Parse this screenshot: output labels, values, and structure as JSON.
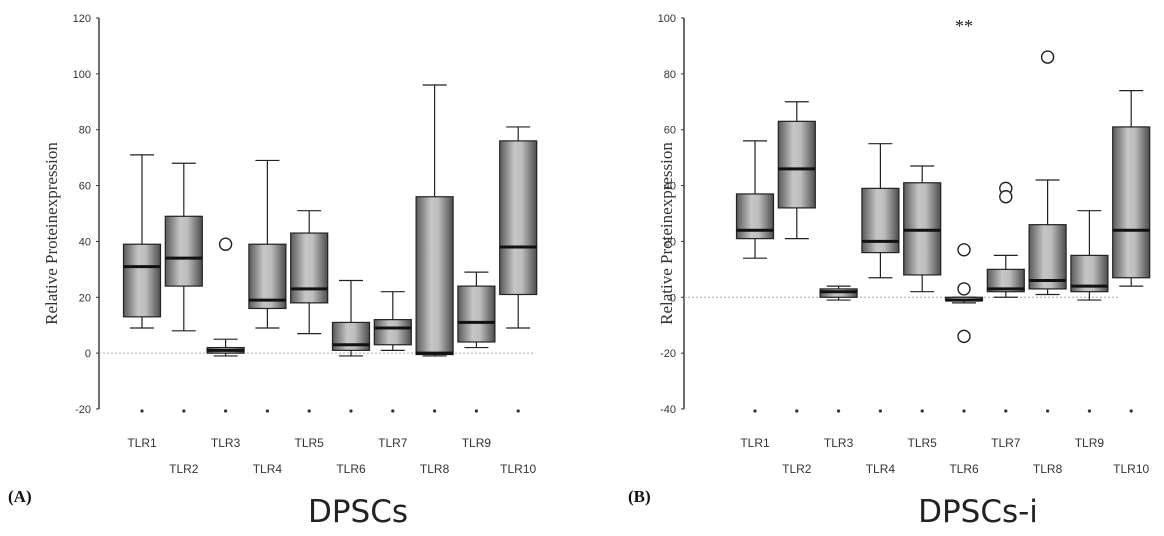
{
  "chart_data": [
    {
      "type": "box",
      "panel_label": "(A)",
      "caption": "DPSCs",
      "ylabel": "Relative Proteinexpression",
      "ylim": [
        -20,
        120
      ],
      "yticks": [
        "-20",
        "0",
        "20",
        "40",
        "60",
        "80",
        "100",
        "120"
      ],
      "categories": [
        "TLR1",
        "TLR2",
        "TLR3",
        "TLR4",
        "TLR5",
        "TLR6",
        "TLR7",
        "TLR8",
        "TLR9",
        "TLR10"
      ],
      "boxes": [
        {
          "min": 9,
          "q1": 13,
          "median": 31,
          "q3": 39,
          "max": 71,
          "outliers": []
        },
        {
          "min": 8,
          "q1": 24,
          "median": 34,
          "q3": 49,
          "max": 68,
          "outliers": []
        },
        {
          "min": -1,
          "q1": 0,
          "median": 1,
          "q3": 2,
          "max": 5,
          "outliers": [
            39
          ]
        },
        {
          "min": 9,
          "q1": 16,
          "median": 19,
          "q3": 39,
          "max": 69,
          "outliers": []
        },
        {
          "min": 7,
          "q1": 18,
          "median": 23,
          "q3": 43,
          "max": 51,
          "outliers": []
        },
        {
          "min": -1,
          "q1": 1,
          "median": 3,
          "q3": 11,
          "max": 26,
          "outliers": []
        },
        {
          "min": 1,
          "q1": 3,
          "median": 9,
          "q3": 12,
          "max": 22,
          "outliers": []
        },
        {
          "min": -1,
          "q1": -0.5,
          "median": 0,
          "q3": 56,
          "max": 96,
          "outliers": []
        },
        {
          "min": 2,
          "q1": 4,
          "median": 11,
          "q3": 24,
          "max": 29,
          "outliers": []
        },
        {
          "min": 9,
          "q1": 21,
          "median": 38,
          "q3": 76,
          "max": 81,
          "outliers": []
        }
      ],
      "annotations": []
    },
    {
      "type": "box",
      "panel_label": "(B)",
      "caption": "DPSCs-i",
      "ylabel": "Relative Proteinexpression",
      "ylim": [
        -40,
        100
      ],
      "yticks": [
        "-40",
        "-20",
        "0",
        "20",
        "40",
        "60",
        "80",
        "100"
      ],
      "categories": [
        "TLR1",
        "TLR2",
        "TLR3",
        "TLR4",
        "TLR5",
        "TLR6",
        "TLR7",
        "TLR8",
        "TLR9",
        "TLR10"
      ],
      "boxes": [
        {
          "min": 14,
          "q1": 21,
          "median": 24,
          "q3": 37,
          "max": 56,
          "outliers": []
        },
        {
          "min": 21,
          "q1": 32,
          "median": 46,
          "q3": 63,
          "max": 70,
          "outliers": []
        },
        {
          "min": -1,
          "q1": 0,
          "median": 2,
          "q3": 3,
          "max": 4,
          "outliers": []
        },
        {
          "min": 7,
          "q1": 16,
          "median": 20,
          "q3": 39,
          "max": 55,
          "outliers": []
        },
        {
          "min": 2,
          "q1": 8,
          "median": 24,
          "q3": 41,
          "max": 47,
          "outliers": []
        },
        {
          "min": -2,
          "q1": -1,
          "median": -1,
          "q3": 0,
          "max": 0,
          "outliers": [
            17,
            3,
            -14
          ]
        },
        {
          "min": 0,
          "q1": 2,
          "median": 3,
          "q3": 10,
          "max": 15,
          "outliers": [
            39,
            36
          ]
        },
        {
          "min": 1,
          "q1": 3,
          "median": 6,
          "q3": 26,
          "max": 42,
          "outliers": [
            86
          ]
        },
        {
          "min": -1,
          "q1": 2,
          "median": 4,
          "q3": 15,
          "max": 31,
          "outliers": []
        },
        {
          "min": 4,
          "q1": 7,
          "median": 24,
          "q3": 61,
          "max": 74,
          "outliers": []
        }
      ],
      "annotations": [
        {
          "text": "**",
          "category": "TLR6"
        }
      ]
    }
  ]
}
